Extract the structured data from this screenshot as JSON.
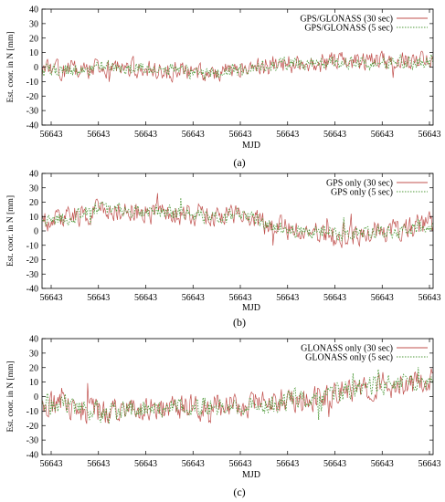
{
  "chart_data": [
    {
      "type": "line",
      "panel_label": "(a)",
      "xlabel": "MJD",
      "ylabel": "Est. coor. in N [mm]",
      "ylim": [
        -40,
        40
      ],
      "yticks": [
        -40,
        -30,
        -20,
        -10,
        0,
        10,
        20,
        30,
        40
      ],
      "xtick_labels": [
        "56643",
        "56643",
        "56643",
        "56643",
        "56643",
        "56643",
        "56643",
        "56643",
        "56643"
      ],
      "legend_position": "top-right",
      "grid": false,
      "series": [
        {
          "name": "GPS/GLONASS (30 sec)",
          "color": "#c0504d",
          "style": "solid",
          "trend": [
            [
              0,
              -3
            ],
            [
              0.2,
              0
            ],
            [
              0.45,
              -4
            ],
            [
              0.6,
              2
            ],
            [
              0.75,
              3
            ],
            [
              1,
              4
            ]
          ],
          "noise": 6,
          "seed": 11
        },
        {
          "name": "GPS/GLONASS (5 sec)",
          "color": "#4f9a3a",
          "style": "dotted",
          "trend": [
            [
              0,
              -3
            ],
            [
              0.2,
              0
            ],
            [
              0.45,
              -4
            ],
            [
              0.6,
              2
            ],
            [
              0.75,
              3
            ],
            [
              1,
              4
            ]
          ],
          "noise": 4,
          "seed": 12
        }
      ]
    },
    {
      "type": "line",
      "panel_label": "(b)",
      "xlabel": "MJD",
      "ylabel": "Est. coor. in N [mm]",
      "ylim": [
        -40,
        40
      ],
      "yticks": [
        -40,
        -30,
        -20,
        -10,
        0,
        10,
        20,
        30,
        40
      ],
      "xtick_labels": [
        "56643",
        "56643",
        "56643",
        "56643",
        "56643",
        "56643",
        "56643",
        "56643",
        "56643"
      ],
      "legend_position": "top-right",
      "grid": false,
      "series": [
        {
          "name": "GPS only (30 sec)",
          "color": "#c0504d",
          "style": "solid",
          "trend": [
            [
              0,
              5
            ],
            [
              0.15,
              15
            ],
            [
              0.4,
              12
            ],
            [
              0.5,
              10
            ],
            [
              0.65,
              0
            ],
            [
              0.8,
              -3
            ],
            [
              1,
              5
            ]
          ],
          "noise": 7,
          "seed": 21
        },
        {
          "name": "GPS only (5 sec)",
          "color": "#4f9a3a",
          "style": "dotted",
          "trend": [
            [
              0,
              5
            ],
            [
              0.15,
              15
            ],
            [
              0.4,
              12
            ],
            [
              0.5,
              10
            ],
            [
              0.65,
              0
            ],
            [
              0.8,
              -3
            ],
            [
              1,
              5
            ]
          ],
          "noise": 4.5,
          "seed": 22
        }
      ]
    },
    {
      "type": "line",
      "panel_label": "(c)",
      "xlabel": "MJD",
      "ylabel": "Est. coor. in N [mm]",
      "ylim": [
        -40,
        40
      ],
      "yticks": [
        -40,
        -30,
        -20,
        -10,
        0,
        10,
        20,
        30,
        40
      ],
      "xtick_labels": [
        "56643",
        "56643",
        "56643",
        "56643",
        "56643",
        "56643",
        "56643",
        "56643",
        "56643"
      ],
      "legend_position": "top-right",
      "grid": false,
      "series": [
        {
          "name": "GLONASS only (30 sec)",
          "color": "#c0504d",
          "style": "solid",
          "trend": [
            [
              0,
              -5
            ],
            [
              0.15,
              -10
            ],
            [
              0.35,
              -8
            ],
            [
              0.55,
              -5
            ],
            [
              0.7,
              0
            ],
            [
              0.85,
              8
            ],
            [
              1,
              10
            ]
          ],
          "noise": 8,
          "seed": 31
        },
        {
          "name": "GLONASS only (5 sec)",
          "color": "#4f9a3a",
          "style": "dotted",
          "trend": [
            [
              0,
              -5
            ],
            [
              0.15,
              -10
            ],
            [
              0.35,
              -8
            ],
            [
              0.55,
              -5
            ],
            [
              0.7,
              0
            ],
            [
              0.85,
              8
            ],
            [
              1,
              10
            ]
          ],
          "noise": 6,
          "seed": 32
        }
      ]
    }
  ]
}
